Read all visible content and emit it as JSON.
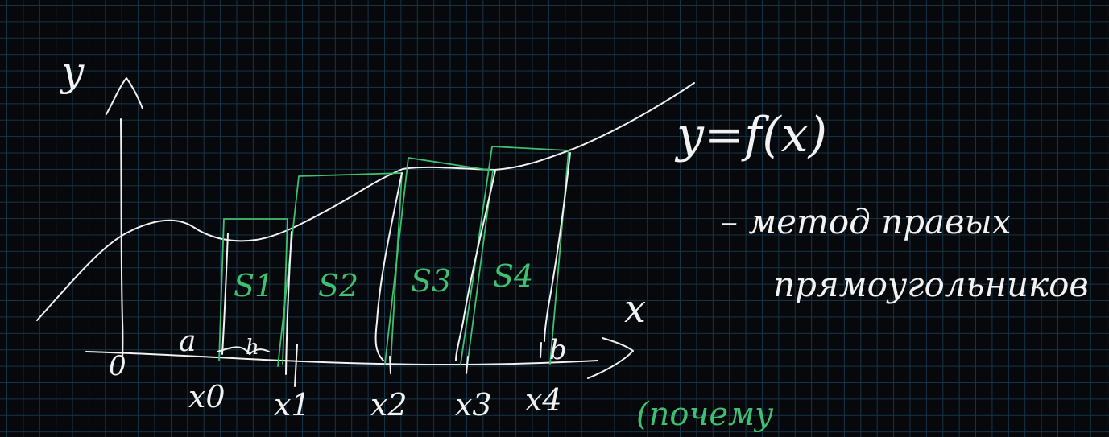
{
  "diagram": {
    "axis_y_label": "y",
    "axis_x_label": "x",
    "origin_label": "0",
    "left_bound_label": "a",
    "right_bound_label": "b",
    "curve_label": "y=f(x)",
    "x_labels": [
      "x0",
      "x1",
      "x2",
      "x3",
      "x4"
    ],
    "area_labels": [
      "S1",
      "S2",
      "S3",
      "S4"
    ],
    "step_label": "h",
    "note_line1": "– метод правых",
    "note_line2": "прямоугольников",
    "green_note": "(почему"
  },
  "colors": {
    "background": "#06080b",
    "grid": "#173447",
    "ink_white": "#f2f2f2",
    "ink_green": "#3fbf72"
  }
}
